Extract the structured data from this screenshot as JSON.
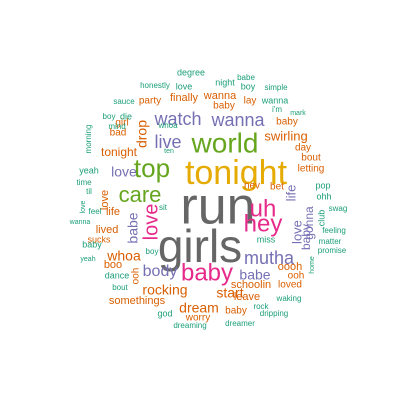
{
  "palette": {
    "teal": "#1b9e77",
    "orange": "#d95f02",
    "purple": "#7570b3",
    "pink": "#e7298a",
    "green": "#66a61e",
    "gold": "#e6ab02",
    "gray": "#666666"
  },
  "words": [
    {
      "text": "run",
      "color": "gray"
    },
    {
      "text": "girls",
      "color": "gray"
    },
    {
      "text": "tonight",
      "color": "gold"
    },
    {
      "text": "world",
      "color": "green"
    },
    {
      "text": "top",
      "color": "green"
    },
    {
      "text": "baby",
      "color": "pink"
    },
    {
      "text": "hey",
      "color": "pink"
    },
    {
      "text": "uh",
      "color": "pink"
    },
    {
      "text": "care",
      "color": "green"
    },
    {
      "text": "watch",
      "color": "purple"
    },
    {
      "text": "wanna",
      "color": "purple"
    },
    {
      "text": "love",
      "color": "pink"
    },
    {
      "text": "live",
      "color": "purple"
    },
    {
      "text": "mutha",
      "color": "purple"
    },
    {
      "text": "body",
      "color": "purple"
    },
    {
      "text": "babe",
      "color": "purple"
    },
    {
      "text": "babe",
      "color": "purple"
    },
    {
      "text": "love",
      "color": "purple"
    },
    {
      "text": "drop",
      "color": "orange"
    },
    {
      "text": "whoa",
      "color": "orange"
    },
    {
      "text": "rocking",
      "color": "orange"
    },
    {
      "text": "dream",
      "color": "orange"
    },
    {
      "text": "start",
      "color": "orange"
    },
    {
      "text": "swirling",
      "color": "orange"
    },
    {
      "text": "life",
      "color": "purple"
    },
    {
      "text": "love",
      "color": "purple"
    },
    {
      "text": "gonna",
      "color": "purple"
    },
    {
      "text": "baby",
      "color": "purple"
    },
    {
      "text": "tonight",
      "color": "orange"
    },
    {
      "text": "wanna",
      "color": "orange"
    },
    {
      "text": "finally",
      "color": "orange"
    },
    {
      "text": "party",
      "color": "orange"
    },
    {
      "text": "baby",
      "color": "orange"
    },
    {
      "text": "lay",
      "color": "orange"
    },
    {
      "text": "love",
      "color": "orange"
    },
    {
      "text": "life",
      "color": "orange"
    },
    {
      "text": "lived",
      "color": "orange"
    },
    {
      "text": "boo",
      "color": "orange"
    },
    {
      "text": "dance",
      "color": "teal"
    },
    {
      "text": "ooh",
      "color": "orange"
    },
    {
      "text": "somethings",
      "color": "orange"
    },
    {
      "text": "schoolin",
      "color": "orange"
    },
    {
      "text": "leave",
      "color": "orange"
    },
    {
      "text": "worry",
      "color": "orange"
    },
    {
      "text": "ooh",
      "color": "orange"
    },
    {
      "text": "oooh",
      "color": "orange"
    },
    {
      "text": "baby",
      "color": "orange"
    },
    {
      "text": "letting",
      "color": "orange"
    },
    {
      "text": "day",
      "color": "orange"
    },
    {
      "text": "bout",
      "color": "orange"
    },
    {
      "text": "nev",
      "color": "orange"
    },
    {
      "text": "bet",
      "color": "orange"
    },
    {
      "text": "loved",
      "color": "orange"
    },
    {
      "text": "baby",
      "color": "orange"
    },
    {
      "text": "god",
      "color": "teal"
    },
    {
      "text": "bad",
      "color": "orange"
    },
    {
      "text": "girl",
      "color": "orange"
    },
    {
      "text": "sucks",
      "color": "orange"
    },
    {
      "text": "degree",
      "color": "teal"
    },
    {
      "text": "night",
      "color": "teal"
    },
    {
      "text": "babe",
      "color": "teal"
    },
    {
      "text": "boy",
      "color": "teal"
    },
    {
      "text": "simple",
      "color": "teal"
    },
    {
      "text": "love",
      "color": "teal"
    },
    {
      "text": "honestly",
      "color": "teal"
    },
    {
      "text": "sauce",
      "color": "teal"
    },
    {
      "text": "whoa",
      "color": "teal"
    },
    {
      "text": "ten",
      "color": "teal"
    },
    {
      "text": "die",
      "color": "teal"
    },
    {
      "text": "boy",
      "color": "teal"
    },
    {
      "text": "mind",
      "color": "teal"
    },
    {
      "text": "wanna",
      "color": "teal"
    },
    {
      "text": "i'm",
      "color": "teal"
    },
    {
      "text": "mark",
      "color": "teal"
    },
    {
      "text": "morning",
      "color": "teal"
    },
    {
      "text": "yeah",
      "color": "teal"
    },
    {
      "text": "time",
      "color": "teal"
    },
    {
      "text": "til",
      "color": "teal"
    },
    {
      "text": "love",
      "color": "teal"
    },
    {
      "text": "feel",
      "color": "teal"
    },
    {
      "text": "wanna",
      "color": "teal"
    },
    {
      "text": "baby",
      "color": "teal"
    },
    {
      "text": "yeah",
      "color": "teal"
    },
    {
      "text": "sit",
      "color": "teal"
    },
    {
      "text": "boy",
      "color": "teal"
    },
    {
      "text": "bout",
      "color": "teal"
    },
    {
      "text": "miss",
      "color": "teal"
    },
    {
      "text": "rock",
      "color": "teal"
    },
    {
      "text": "waking",
      "color": "teal"
    },
    {
      "text": "dripping",
      "color": "teal"
    },
    {
      "text": "dreamer",
      "color": "teal"
    },
    {
      "text": "dreaming",
      "color": "teal"
    },
    {
      "text": "pop",
      "color": "teal"
    },
    {
      "text": "ohh",
      "color": "teal"
    },
    {
      "text": "club",
      "color": "teal"
    },
    {
      "text": "swag",
      "color": "teal"
    },
    {
      "text": "feeling",
      "color": "teal"
    },
    {
      "text": "matter",
      "color": "teal"
    },
    {
      "text": "promise",
      "color": "teal"
    },
    {
      "text": "home",
      "color": "teal"
    }
  ]
}
